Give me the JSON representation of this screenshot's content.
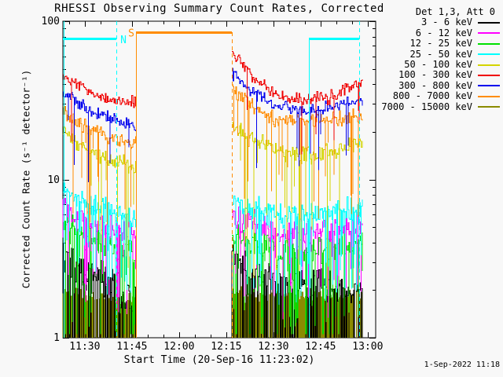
{
  "page": {
    "background": "#f8f8f8"
  },
  "generated_label": "1-Sep-2022 11:18",
  "legend": {
    "header": "Det 1,3, Att 0",
    "entries": [
      {
        "label": "3 - 6 keV",
        "color": "#000000"
      },
      {
        "label": "6 - 12 keV",
        "color": "#ff00ff"
      },
      {
        "label": "12 - 25 keV",
        "color": "#00e000"
      },
      {
        "label": "25 - 50 keV",
        "color": "#00ffff"
      },
      {
        "label": "50 - 100 keV",
        "color": "#d4d400"
      },
      {
        "label": "100 - 300 keV",
        "color": "#f00000"
      },
      {
        "label": "300 - 800 keV",
        "color": "#0000ee"
      },
      {
        "label": "800 - 7000 keV",
        "color": "#ff8c00"
      },
      {
        "label": "7000 - 15000 keV",
        "color": "#8b8b00"
      }
    ]
  },
  "chart_data": {
    "type": "line",
    "title": "RHESSI Observing Summary Count Rates, Corrected",
    "xlabel": "Start Time (20-Sep-16 11:23:02)",
    "ylabel": "Corrected Count Rate (s⁻¹ detector⁻¹)",
    "yscale": "log",
    "ylim": [
      1,
      100
    ],
    "y_major_ticks": [
      "1",
      "10",
      "100"
    ],
    "x_tick_labels": [
      "11:30",
      "11:45",
      "12:00",
      "12:15",
      "12:30",
      "12:45",
      "13:00"
    ],
    "x_tick_start_minutes": 6.9667,
    "x_tick_step_minutes": 15,
    "x_minor_start_minutes": 1.9667,
    "x_minor_step_minutes": 5,
    "x_end_minutes": 99.5,
    "start_time": "20-Sep-16 11:23:02",
    "data_gap_minutes": [
      23.3,
      53.8
    ],
    "draw_order": [
      8,
      0,
      2,
      1,
      3,
      4,
      7,
      6,
      5
    ],
    "series": [
      {
        "name": "3 - 6 keV",
        "color": "#000000",
        "style": "floor",
        "noise": 0.14,
        "spike_p": 0.55,
        "segments": [
          [
            [
              0,
              3.2
            ],
            [
              12,
              2.3
            ],
            [
              23.2,
              1.8
            ]
          ],
          [
            [
              53.8,
              3.5
            ],
            [
              56.5,
              3.0
            ],
            [
              60,
              2.4
            ],
            [
              95.2,
              1.9
            ]
          ]
        ]
      },
      {
        "name": "6 - 12 keV",
        "color": "#ff00ff",
        "style": "spiky",
        "noise": 0.1,
        "spike_p": 0.3,
        "spike_depth": 0.45,
        "segments": [
          [
            [
              0,
              6.6
            ],
            [
              12,
              5.2
            ],
            [
              23.2,
              4.5
            ]
          ],
          [
            [
              53.8,
              6.0
            ],
            [
              68,
              4.6
            ],
            [
              95.2,
              5.1
            ]
          ]
        ]
      },
      {
        "name": "12 - 25 keV",
        "color": "#00e000",
        "style": "spiky",
        "noise": 0.11,
        "spike_p": 0.38,
        "spike_depth": 0.6,
        "segments": [
          [
            [
              0,
              5.2
            ],
            [
              12,
              4.0
            ],
            [
              23.2,
              3.4
            ]
          ],
          [
            [
              53.8,
              4.9
            ],
            [
              68,
              3.5
            ],
            [
              95.2,
              4.0
            ]
          ]
        ]
      },
      {
        "name": "25 - 50 keV",
        "color": "#00ffff",
        "style": "spiky",
        "noise": 0.09,
        "spike_p": 0.33,
        "spike_depth": 0.45,
        "segments": [
          [
            [
              0,
              8.2
            ],
            [
              12,
              6.5
            ],
            [
              23.2,
              5.6
            ]
          ],
          [
            [
              53.8,
              7.5
            ],
            [
              68,
              5.8
            ],
            [
              95.2,
              6.6
            ]
          ]
        ]
      },
      {
        "name": "50 - 100 keV",
        "color": "#d4d400",
        "style": "spiky",
        "noise": 0.07,
        "spike_p": 0.12,
        "spike_depth": 0.8,
        "segments": [
          [
            [
              0,
              20
            ],
            [
              8,
              15
            ],
            [
              16,
              13
            ],
            [
              23.2,
              12
            ]
          ],
          [
            [
              53.8,
              22
            ],
            [
              60,
              18
            ],
            [
              68,
              15
            ],
            [
              80,
              14
            ],
            [
              95.2,
              17
            ]
          ]
        ]
      },
      {
        "name": "100 - 300 keV",
        "color": "#f00000",
        "style": "spiky",
        "noise": 0.05,
        "spike_p": 0.06,
        "spike_depth": 0.3,
        "segments": [
          [
            [
              0,
              46
            ],
            [
              8,
              36
            ],
            [
              16,
              32
            ],
            [
              23.2,
              31
            ]
          ],
          [
            [
              53.8,
              64
            ],
            [
              60,
              45
            ],
            [
              68,
              34
            ],
            [
              76,
              32
            ],
            [
              84,
              33
            ],
            [
              95.2,
              41
            ]
          ]
        ]
      },
      {
        "name": "300 - 800 keV",
        "color": "#0000ee",
        "style": "spiky",
        "noise": 0.05,
        "spike_p": 0.08,
        "spike_depth": 0.35,
        "segments": [
          [
            [
              0,
              36
            ],
            [
              8,
              28
            ],
            [
              16,
              24
            ],
            [
              23.2,
              22
            ]
          ],
          [
            [
              53.8,
              47
            ],
            [
              60,
              36
            ],
            [
              68,
              29
            ],
            [
              80,
              27
            ],
            [
              95.2,
              32
            ]
          ]
        ]
      },
      {
        "name": "800 - 7000 keV",
        "color": "#ff8c00",
        "style": "spiky",
        "noise": 0.06,
        "spike_p": 0.14,
        "spike_depth": 0.6,
        "segments": [
          [
            [
              0,
              27
            ],
            [
              8,
              21
            ],
            [
              16,
              18
            ],
            [
              23.2,
              17
            ]
          ],
          [
            [
              53.8,
              37
            ],
            [
              60,
              29
            ],
            [
              68,
              24
            ],
            [
              80,
              23
            ],
            [
              95.2,
              25
            ]
          ]
        ]
      },
      {
        "name": "7000 - 15000 keV",
        "color": "#8b8b00",
        "style": "column",
        "noise": 0.06,
        "gap_p": 0.12,
        "segments": [
          [
            [
              0,
              1.9
            ],
            [
              23.2,
              1.7
            ]
          ],
          [
            [
              53.8,
              1.9
            ],
            [
              95.2,
              1.8
            ]
          ]
        ]
      }
    ],
    "flags": [
      {
        "name": "eclipse-line-start",
        "type": "vline",
        "color": "#00ffff",
        "t": 0.3,
        "v": [
          1,
          100
        ],
        "dashed": false
      },
      {
        "name": "eclipse-bar-left",
        "type": "hbar",
        "color": "#00ffff",
        "t": [
          0,
          17
        ],
        "v": 78
      },
      {
        "name": "eclipse-line-end",
        "type": "vline",
        "color": "#00ffff",
        "t": 17,
        "v": [
          1,
          100
        ],
        "dashed": true
      },
      {
        "name": "night-label",
        "type": "label",
        "text": "N",
        "color": "#00ffff",
        "t": 19.25,
        "v": 76
      },
      {
        "name": "saa-label",
        "type": "label",
        "text": "S",
        "color": "#ff8c00",
        "t": 21.75,
        "v": 84
      },
      {
        "name": "saa-line-start",
        "type": "vline",
        "color": "#ff8c00",
        "t": 23.3,
        "v": [
          1,
          85
        ],
        "dashed": false
      },
      {
        "name": "saa-bar",
        "type": "hbar",
        "color": "#ff8c00",
        "t": [
          23.3,
          53.8
        ],
        "v": 85
      },
      {
        "name": "saa-line-end",
        "type": "vline",
        "color": "#ff8c00",
        "t": 53.8,
        "v": [
          1,
          85
        ],
        "dashed": true
      },
      {
        "name": "eclipse-line-start-2",
        "type": "vline",
        "color": "#00ffff",
        "t": 78.3,
        "v": [
          1,
          78
        ],
        "dashed": false
      },
      {
        "name": "eclipse-bar-right",
        "type": "hbar",
        "color": "#00ffff",
        "t": [
          78.3,
          94.3
        ],
        "v": 78
      },
      {
        "name": "eclipse-line-end-2",
        "type": "vline",
        "color": "#00ffff",
        "t": 94.3,
        "v": [
          1,
          100
        ],
        "dashed": true
      }
    ]
  }
}
